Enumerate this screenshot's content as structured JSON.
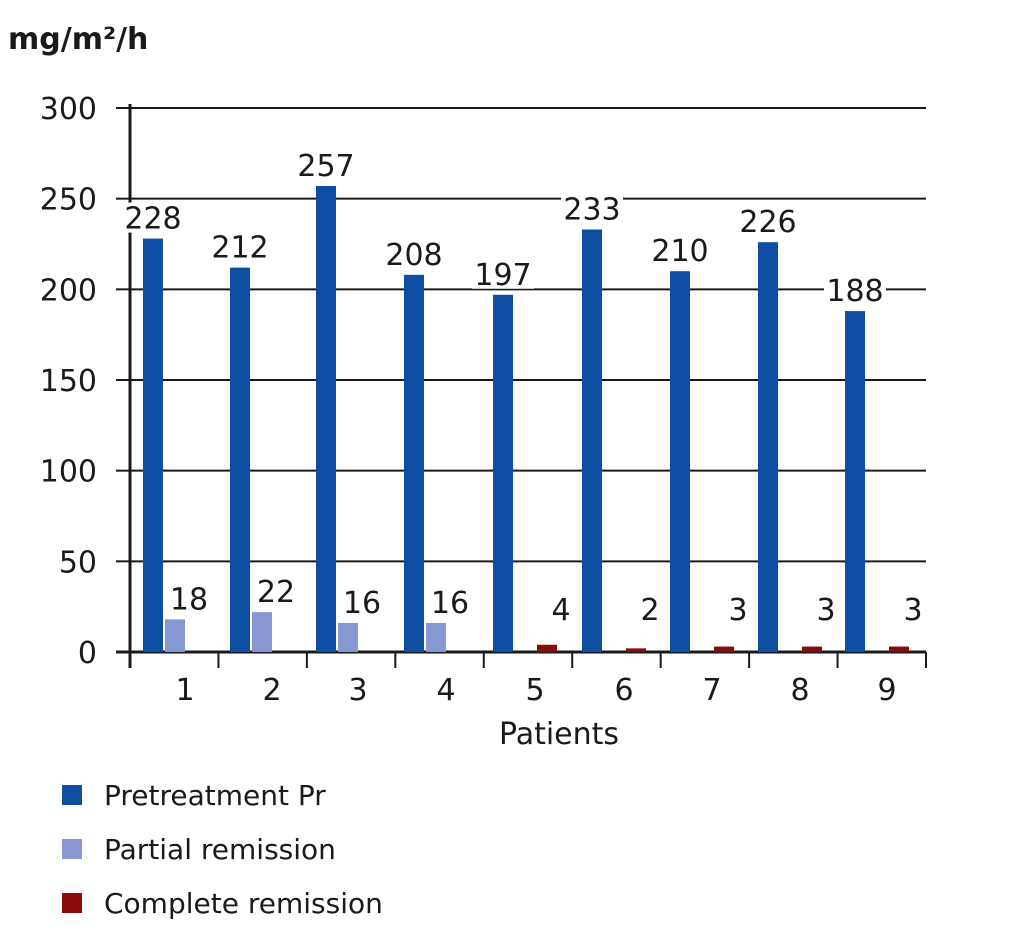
{
  "chart_data": {
    "type": "bar",
    "ylabel": "mg/m²/h",
    "xlabel": "Patients",
    "categories": [
      "1",
      "2",
      "3",
      "4",
      "5",
      "6",
      "7",
      "8",
      "9"
    ],
    "ylim": [
      0,
      300
    ],
    "yticks": [
      0,
      50,
      100,
      150,
      200,
      250,
      300
    ],
    "grid": true,
    "legend_position": "bottom-left",
    "series": [
      {
        "name": "Pretreatment Pr",
        "color": "#0d4ea3",
        "values": [
          228,
          212,
          257,
          208,
          197,
          233,
          210,
          226,
          188
        ],
        "labels": [
          "228",
          "212",
          "257",
          "208",
          "197",
          "233",
          "210",
          "226",
          "188"
        ]
      },
      {
        "name": "Partial remission",
        "color": "#8896d1",
        "values": [
          18,
          22,
          16,
          16,
          null,
          null,
          null,
          null,
          null
        ],
        "labels": [
          "18",
          "22",
          "16",
          "16",
          "",
          "",
          "",
          "",
          ""
        ]
      },
      {
        "name": "Complete remission",
        "color": "#8b0a0a",
        "values": [
          null,
          null,
          null,
          null,
          4,
          2,
          3,
          3,
          3
        ],
        "labels": [
          "",
          "",
          "",
          "",
          "4",
          "2",
          "3",
          "3",
          "3"
        ]
      }
    ]
  }
}
